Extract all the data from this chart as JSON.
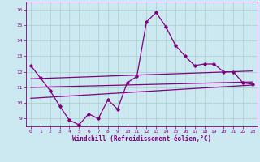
{
  "xlabel": "Windchill (Refroidissement éolien,°C)",
  "xlim": [
    -0.5,
    23.5
  ],
  "ylim": [
    8.5,
    16.5
  ],
  "yticks": [
    9,
    10,
    11,
    12,
    13,
    14,
    15,
    16
  ],
  "xticks": [
    0,
    1,
    2,
    3,
    4,
    5,
    6,
    7,
    8,
    9,
    10,
    11,
    12,
    13,
    14,
    15,
    16,
    17,
    18,
    19,
    20,
    21,
    22,
    23
  ],
  "bg_color": "#cce8f0",
  "line_color": "#800080",
  "grid_color": "#aacccc",
  "series1_x": [
    0,
    1,
    2,
    3,
    4,
    5,
    6,
    7,
    8,
    9,
    10,
    11,
    12,
    13,
    14,
    15,
    16,
    17,
    18,
    19,
    20,
    21,
    22,
    23
  ],
  "series1_y": [
    12.4,
    11.6,
    10.8,
    9.8,
    8.9,
    8.6,
    9.3,
    9.0,
    10.2,
    9.6,
    11.3,
    11.7,
    15.2,
    15.8,
    14.9,
    13.7,
    13.0,
    12.4,
    12.5,
    12.5,
    12.0,
    12.0,
    11.3,
    11.2
  ],
  "series2_x": [
    0,
    23
  ],
  "series2_y": [
    11.55,
    12.05
  ],
  "series3_x": [
    0,
    23
  ],
  "series3_y": [
    11.0,
    11.35
  ],
  "series4_x": [
    0,
    23
  ],
  "series4_y": [
    10.3,
    11.15
  ]
}
